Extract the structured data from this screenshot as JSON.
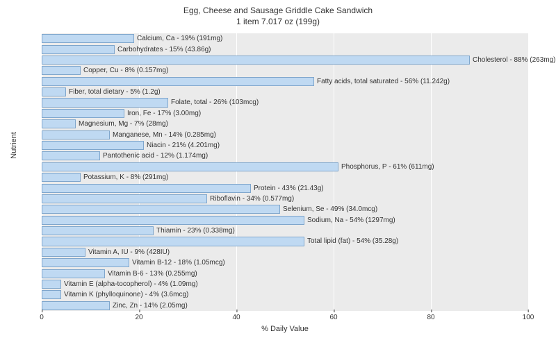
{
  "chart": {
    "type": "bar-horizontal",
    "title_line1": "Egg, Cheese and Sausage Griddle Cake Sandwich",
    "title_line2": "1 item 7.017 oz (199g)",
    "title_fontsize": 12,
    "plot_bg": "#ebebeb",
    "grid_color": "#ffffff",
    "bar_fill": "#bfd9f2",
    "bar_border": "#7fa6cc",
    "label_fontsize": 10,
    "xlabel": "% Daily Value",
    "ylabel": "Nutrient",
    "xlim": [
      0,
      100
    ],
    "xticks": [
      0,
      20,
      40,
      60,
      80,
      100
    ],
    "bars": [
      {
        "label": "Calcium, Ca - 19% (191mg)",
        "value": 19
      },
      {
        "label": "Carbohydrates - 15% (43.86g)",
        "value": 15
      },
      {
        "label": "Cholesterol - 88% (263mg)",
        "value": 88
      },
      {
        "label": "Copper, Cu - 8% (0.157mg)",
        "value": 8
      },
      {
        "label": "Fatty acids, total saturated - 56% (11.242g)",
        "value": 56
      },
      {
        "label": "Fiber, total dietary - 5% (1.2g)",
        "value": 5
      },
      {
        "label": "Folate, total - 26% (103mcg)",
        "value": 26
      },
      {
        "label": "Iron, Fe - 17% (3.00mg)",
        "value": 17
      },
      {
        "label": "Magnesium, Mg - 7% (28mg)",
        "value": 7
      },
      {
        "label": "Manganese, Mn - 14% (0.285mg)",
        "value": 14
      },
      {
        "label": "Niacin - 21% (4.201mg)",
        "value": 21
      },
      {
        "label": "Pantothenic acid - 12% (1.174mg)",
        "value": 12
      },
      {
        "label": "Phosphorus, P - 61% (611mg)",
        "value": 61
      },
      {
        "label": "Potassium, K - 8% (291mg)",
        "value": 8
      },
      {
        "label": "Protein - 43% (21.43g)",
        "value": 43
      },
      {
        "label": "Riboflavin - 34% (0.577mg)",
        "value": 34
      },
      {
        "label": "Selenium, Se - 49% (34.0mcg)",
        "value": 49
      },
      {
        "label": "Sodium, Na - 54% (1297mg)",
        "value": 54
      },
      {
        "label": "Thiamin - 23% (0.338mg)",
        "value": 23
      },
      {
        "label": "Total lipid (fat) - 54% (35.28g)",
        "value": 54
      },
      {
        "label": "Vitamin A, IU - 9% (428IU)",
        "value": 9
      },
      {
        "label": "Vitamin B-12 - 18% (1.05mcg)",
        "value": 18
      },
      {
        "label": "Vitamin B-6 - 13% (0.255mg)",
        "value": 13
      },
      {
        "label": "Vitamin E (alpha-tocopherol) - 4% (1.09mg)",
        "value": 4
      },
      {
        "label": "Vitamin K (phylloquinone) - 4% (3.6mcg)",
        "value": 4
      },
      {
        "label": "Zinc, Zn - 14% (2.05mg)",
        "value": 14
      }
    ]
  }
}
